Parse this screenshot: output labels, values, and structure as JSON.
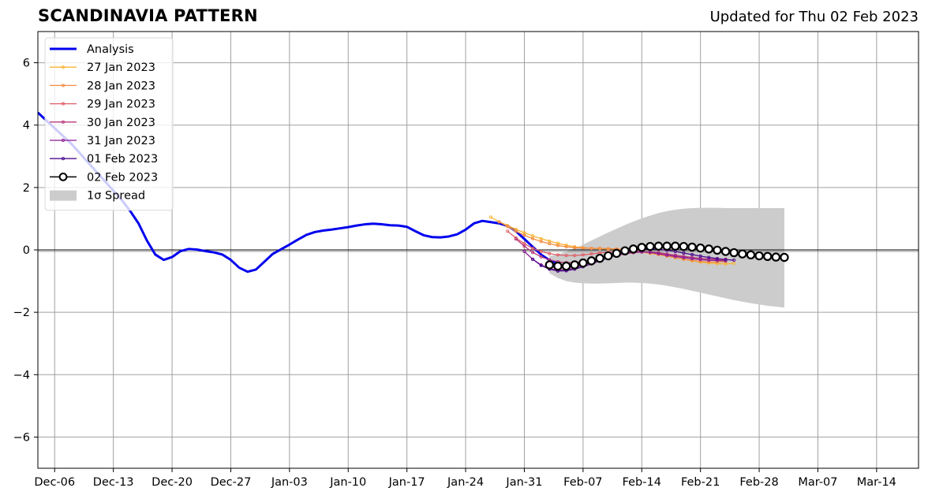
{
  "title": "SCANDINAVIA PATTERN",
  "subtitle": "Updated for Thu 02 Feb 2023",
  "chart_data": {
    "type": "line",
    "title": "SCANDINAVIA PATTERN",
    "subtitle": "Updated for Thu 02 Feb 2023",
    "xlabel": "",
    "ylabel": "",
    "x_range": [
      "2022-12-04",
      "2023-03-19"
    ],
    "ylim": [
      -7,
      7
    ],
    "grid": true,
    "legend_position": "top-left",
    "x_tick_labels": [
      "Dec-06",
      "Dec-13",
      "Dec-20",
      "Dec-27",
      "Jan-03",
      "Jan-10",
      "Jan-17",
      "Jan-24",
      "Jan-31",
      "Feb-07",
      "Feb-14",
      "Feb-21",
      "Feb-28",
      "Mar-07",
      "Mar-14"
    ],
    "x_tick_dates": [
      "2022-12-06",
      "2022-12-13",
      "2022-12-20",
      "2022-12-27",
      "2023-01-03",
      "2023-01-10",
      "2023-01-17",
      "2023-01-24",
      "2023-01-31",
      "2023-02-07",
      "2023-02-14",
      "2023-02-21",
      "2023-02-28",
      "2023-03-07",
      "2023-03-14"
    ],
    "y_ticks": [
      -6,
      -4,
      -2,
      0,
      2,
      4,
      6
    ],
    "y_tick_labels": [
      "−6",
      "−4",
      "−2",
      "0",
      "2",
      "4",
      "6"
    ],
    "series": [
      {
        "name": "Analysis",
        "color": "#0000ee",
        "start": "2022-12-04",
        "values": [
          4.4,
          4.15,
          3.9,
          3.65,
          3.4,
          3.1,
          2.8,
          2.5,
          2.2,
          1.9,
          1.6,
          1.25,
          0.85,
          0.3,
          -0.15,
          -0.32,
          -0.23,
          -0.04,
          0.03,
          0.01,
          -0.04,
          -0.08,
          -0.15,
          -0.32,
          -0.57,
          -0.7,
          -0.63,
          -0.38,
          -0.13,
          0.02,
          0.17,
          0.33,
          0.48,
          0.57,
          0.62,
          0.65,
          0.69,
          0.73,
          0.78,
          0.82,
          0.84,
          0.82,
          0.79,
          0.78,
          0.74,
          0.6,
          0.47,
          0.41,
          0.4,
          0.43,
          0.5,
          0.65,
          0.85,
          0.93,
          0.89,
          0.85,
          0.77,
          0.6,
          0.35,
          0.1,
          -0.15,
          -0.33,
          -0.45
        ]
      },
      {
        "name": "27 Jan 2023",
        "color": "#f8b534",
        "start": "2023-01-27",
        "values": [
          1.05,
          0.9,
          0.78,
          0.66,
          0.55,
          0.45,
          0.36,
          0.28,
          0.21,
          0.15,
          0.1,
          0.07,
          0.05,
          0.04,
          0.03,
          0.02,
          0.0,
          -0.03,
          -0.07,
          -0.11,
          -0.15,
          -0.2,
          -0.25,
          -0.3,
          -0.35,
          -0.39,
          -0.42,
          -0.44,
          -0.45,
          -0.43
        ]
      },
      {
        "name": "28 Jan 2023",
        "color": "#f48c44",
        "start": "2023-01-28",
        "values": [
          0.9,
          0.75,
          0.6,
          0.47,
          0.36,
          0.27,
          0.2,
          0.14,
          0.1,
          0.07,
          0.06,
          0.05,
          0.05,
          0.04,
          0.03,
          0.01,
          -0.02,
          -0.06,
          -0.1,
          -0.15,
          -0.2,
          -0.25,
          -0.3,
          -0.34,
          -0.37,
          -0.39,
          -0.39,
          -0.37
        ]
      },
      {
        "name": "29 Jan 2023",
        "color": "#de5f68",
        "start": "2023-01-29",
        "values": [
          0.6,
          0.38,
          0.2,
          0.05,
          -0.05,
          -0.12,
          -0.16,
          -0.18,
          -0.18,
          -0.16,
          -0.13,
          -0.1,
          -0.07,
          -0.05,
          -0.04,
          -0.04,
          -0.05,
          -0.08,
          -0.12,
          -0.16,
          -0.2,
          -0.24,
          -0.28,
          -0.31,
          -0.33,
          -0.34,
          -0.33
        ]
      },
      {
        "name": "30 Jan 2023",
        "color": "#b8387b",
        "start": "2023-01-30",
        "values": [
          0.35,
          0.12,
          -0.08,
          -0.22,
          -0.32,
          -0.38,
          -0.41,
          -0.41,
          -0.39,
          -0.35,
          -0.3,
          -0.24,
          -0.18,
          -0.13,
          -0.09,
          -0.07,
          -0.07,
          -0.09,
          -0.13,
          -0.17,
          -0.21,
          -0.24,
          -0.27,
          -0.29,
          -0.3,
          -0.3
        ]
      },
      {
        "name": "31 Jan 2023",
        "color": "#8c1a94",
        "start": "2023-01-31",
        "values": [
          -0.05,
          -0.3,
          -0.48,
          -0.6,
          -0.65,
          -0.64,
          -0.58,
          -0.5,
          -0.41,
          -0.32,
          -0.23,
          -0.16,
          -0.1,
          -0.07,
          -0.06,
          -0.08,
          -0.12,
          -0.17,
          -0.21,
          -0.25,
          -0.28,
          -0.31,
          -0.33,
          -0.34,
          -0.35
        ]
      },
      {
        "name": "01 Feb 2023",
        "color": "#4b0d8e",
        "start": "2023-02-01",
        "values": [
          -0.3,
          -0.5,
          -0.62,
          -0.68,
          -0.67,
          -0.62,
          -0.54,
          -0.45,
          -0.35,
          -0.25,
          -0.16,
          -0.08,
          -0.02,
          0.02,
          0.03,
          0.02,
          -0.01,
          -0.05,
          -0.1,
          -0.15,
          -0.2,
          -0.24,
          -0.28,
          -0.31,
          -0.33
        ]
      },
      {
        "name": "02 Feb 2023",
        "color": "#000000",
        "start": "2023-02-03",
        "marker": "open-circle",
        "values": [
          -0.48,
          -0.52,
          -0.52,
          -0.48,
          -0.42,
          -0.35,
          -0.27,
          -0.19,
          -0.11,
          -0.03,
          0.03,
          0.08,
          0.11,
          0.12,
          0.12,
          0.12,
          0.11,
          0.09,
          0.06,
          0.03,
          -0.01,
          -0.05,
          -0.09,
          -0.13,
          -0.16,
          -0.19,
          -0.21,
          -0.23,
          -0.24
        ]
      }
    ],
    "spread": {
      "name": "1σ Spread",
      "color": "#cccccc",
      "start": "2023-02-03",
      "upper": [
        -0.2,
        -0.15,
        -0.05,
        0.05,
        0.17,
        0.3,
        0.43,
        0.56,
        0.68,
        0.8,
        0.91,
        1.01,
        1.1,
        1.18,
        1.24,
        1.29,
        1.32,
        1.34,
        1.35,
        1.35,
        1.35,
        1.34,
        1.34,
        1.34,
        1.34,
        1.34,
        1.34,
        1.34,
        1.34
      ],
      "lower": [
        -0.75,
        -0.9,
        -1.0,
        -1.05,
        -1.07,
        -1.08,
        -1.08,
        -1.07,
        -1.06,
        -1.05,
        -1.05,
        -1.06,
        -1.08,
        -1.11,
        -1.15,
        -1.2,
        -1.25,
        -1.31,
        -1.37,
        -1.43,
        -1.49,
        -1.55,
        -1.61,
        -1.66,
        -1.71,
        -1.75,
        -1.79,
        -1.82,
        -1.85
      ]
    }
  },
  "legend": {
    "items": [
      {
        "label": "Analysis",
        "color": "#0000ee",
        "style": "thick"
      },
      {
        "label": "27 Jan 2023",
        "color": "#f8b534",
        "style": "dots"
      },
      {
        "label": "28 Jan 2023",
        "color": "#f48c44",
        "style": "dots"
      },
      {
        "label": "29 Jan 2023",
        "color": "#de5f68",
        "style": "dots"
      },
      {
        "label": "30 Jan 2023",
        "color": "#b8387b",
        "style": "dots"
      },
      {
        "label": "31 Jan 2023",
        "color": "#8c1a94",
        "style": "dots"
      },
      {
        "label": "01 Feb 2023",
        "color": "#4b0d8e",
        "style": "dots"
      },
      {
        "label": "02 Feb 2023",
        "color": "#000000",
        "style": "circles"
      },
      {
        "label": "1σ Spread",
        "color": "#cccccc",
        "style": "patch"
      }
    ]
  }
}
